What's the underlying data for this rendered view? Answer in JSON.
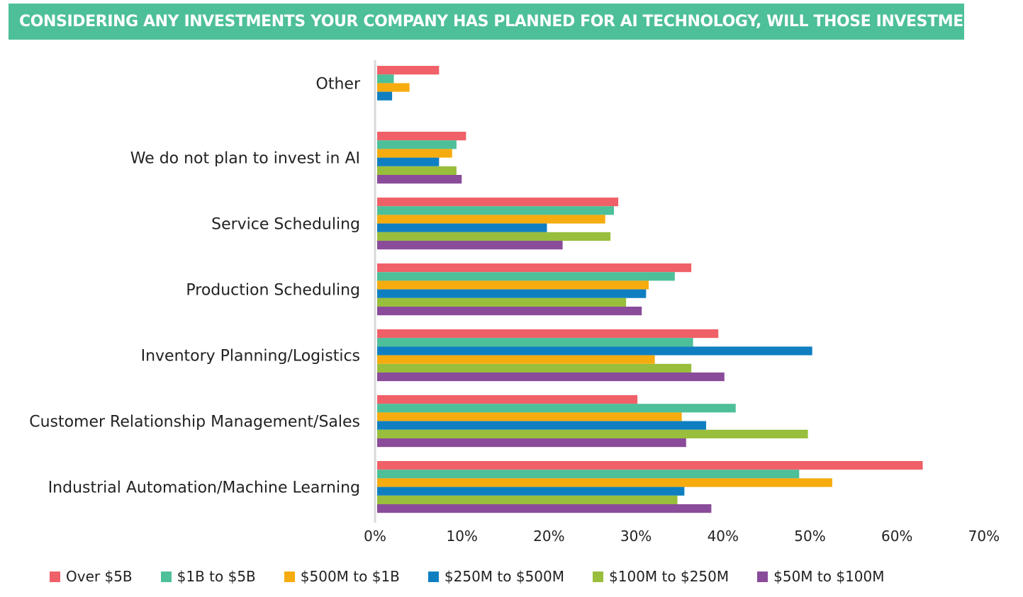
{
  "title": "CONSIDERING ANY INVESTMENTS YOUR COMPANY HAS PLANNED FOR AI TECHNOLOGY, WILL THOSE INVESTMENTS BE IN",
  "chart_data": {
    "type": "bar",
    "orientation": "horizontal",
    "title": "CONSIDERING ANY INVESTMENTS YOUR COMPANY HAS PLANNED FOR AI TECHNOLOGY, WILL THOSE INVESTMENTS BE IN",
    "xlabel": "",
    "ylabel": "",
    "xlim": [
      0,
      70
    ],
    "ticks": [
      "0%",
      "10%",
      "20%",
      "30%",
      "40%",
      "50%",
      "60%",
      "70%"
    ],
    "grid": false,
    "legend_position": "bottom",
    "categories": [
      "Other",
      "We do not plan to invest in AI",
      "Service Scheduling",
      "Production Scheduling",
      "Inventory Planning/Logistics",
      "Customer Relationship Management/Sales",
      "Industrial Automation/Machine Learning"
    ],
    "series": [
      {
        "name": "Over $5B",
        "color": "#f06068",
        "values": [
          7.2,
          10.3,
          27.8,
          36.2,
          39.3,
          30.0,
          62.8
        ]
      },
      {
        "name": "$1B to $5B",
        "color": "#4dbf99",
        "values": [
          2.0,
          9.2,
          27.3,
          34.3,
          36.4,
          41.3,
          48.6
        ]
      },
      {
        "name": "$500M to $1B",
        "color": "#f6ac0e",
        "values": [
          3.8,
          8.7,
          26.3,
          31.3,
          32.0,
          35.1,
          52.4
        ]
      },
      {
        "name": "$250M to $500M",
        "color": "#0f7fc1",
        "values": [
          1.8,
          7.2,
          19.6,
          31.0,
          50.1,
          37.9,
          35.4
        ]
      },
      {
        "name": "$100M to $250M",
        "color": "#98be3c",
        "values": [
          null,
          9.2,
          26.9,
          28.7,
          36.2,
          49.6,
          34.6
        ]
      },
      {
        "name": "$50M to $100M",
        "color": "#8a4b9a",
        "values": [
          null,
          9.8,
          21.4,
          30.5,
          40.0,
          35.6,
          38.5
        ]
      }
    ],
    "bar_order": [
      [
        "Over $5B",
        "$1B to $5B",
        "$500M to $1B",
        "$250M to $500M",
        "$100M to $250M",
        "$50M to $100M"
      ],
      [
        "Over $5B",
        "$1B to $5B",
        "$500M to $1B",
        "$250M to $500M",
        "$100M to $250M",
        "$50M to $100M"
      ],
      [
        "Over $5B",
        "$1B to $5B",
        "$500M to $1B",
        "$250M to $500M",
        "$100M to $250M",
        "$50M to $100M"
      ],
      [
        "Over $5B",
        "$1B to $5B",
        "$500M to $1B",
        "$250M to $500M",
        "$100M to $250M",
        "$50M to $100M"
      ],
      [
        "Over $5B",
        "$1B to $5B",
        "$250M to $500M",
        "$500M to $1B",
        "$100M to $250M",
        "$50M to $100M"
      ],
      [
        "Over $5B",
        "$1B to $5B",
        "$500M to $1B",
        "$250M to $500M",
        "$100M to $250M",
        "$50M to $100M"
      ],
      [
        "Over $5B",
        "$1B to $5B",
        "$500M to $1B",
        "$250M to $500M",
        "$100M to $250M",
        "$50M to $100M"
      ]
    ]
  }
}
